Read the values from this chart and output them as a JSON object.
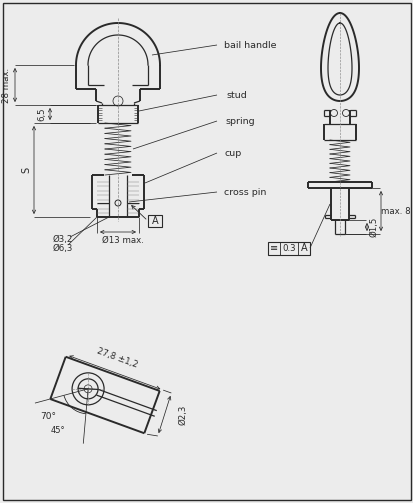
{
  "bg_color": "#ececec",
  "line_color": "#2a2a2a",
  "labels": {
    "bail_handle": "bail handle",
    "stud": "stud",
    "spring": "spring",
    "cup": "cup",
    "cross_pin": "cross pin"
  },
  "dims_left": {
    "28max": "28 max.",
    "6_5": "6,5",
    "S": "S"
  },
  "dims_bottom_left": {
    "d32": "Ø3,2",
    "d63": "Ø6,3",
    "d13": "Ø13 max."
  },
  "dims_right": {
    "d15": "Ø1,5",
    "max8": "max. 8"
  },
  "bottom_dims": {
    "length": "27,8 ±1,2",
    "d23": "Ø2,3",
    "angle1": "70°",
    "angle2": "45°"
  }
}
